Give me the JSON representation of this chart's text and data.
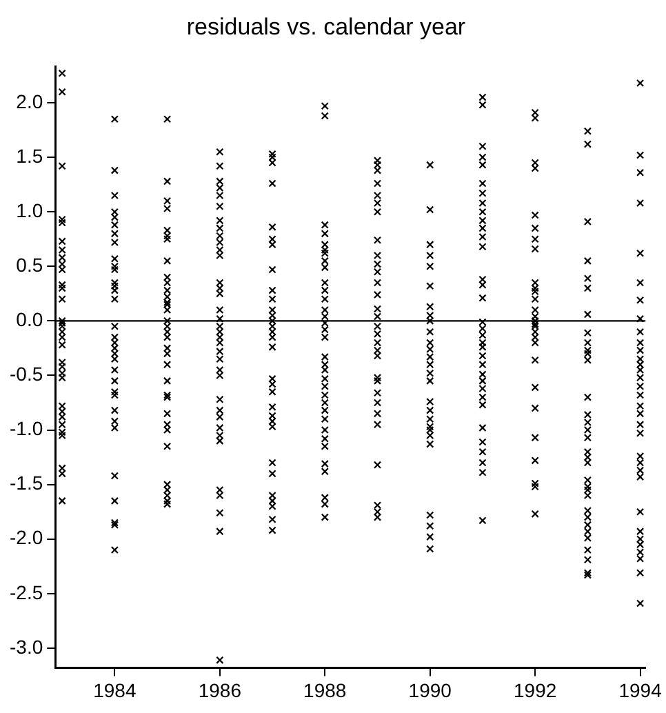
{
  "chart_data": {
    "type": "scatter",
    "title": "residuals vs. calendar year",
    "marker": "cross",
    "grid": false,
    "legend": false,
    "xlim": [
      1982.87,
      1994.1
    ],
    "xticks": [
      1984,
      1986,
      1988,
      1990,
      1992,
      1994
    ],
    "ylim": [
      -3.18,
      2.33
    ],
    "yticks": [
      {
        "value": -3,
        "label": "-3.0"
      },
      {
        "value": -2.5,
        "label": "-2.5"
      },
      {
        "value": -2,
        "label": "-2.0"
      },
      {
        "value": -1.5,
        "label": "-1.5"
      },
      {
        "value": -1,
        "label": "-1.0"
      },
      {
        "value": -0.5,
        "label": "-0.5"
      },
      {
        "value": 0,
        "label": "0.0"
      },
      {
        "value": 0.5,
        "label": "0.5"
      },
      {
        "value": 1,
        "label": "1.0"
      },
      {
        "value": 1.5,
        "label": "1.5"
      },
      {
        "value": 2,
        "label": "2.0"
      }
    ],
    "ref_lines": [
      {
        "axis": "y",
        "value": 0,
        "color": "#000000"
      }
    ],
    "series": [
      {
        "color": "#000000",
        "x": [
          1983,
          1983,
          1983,
          1983,
          1983,
          1983,
          1983,
          1983,
          1983,
          1983,
          1983,
          1983,
          1983,
          1983,
          1983,
          1983,
          1983,
          1983,
          1983,
          1983,
          1983,
          1983,
          1983,
          1983,
          1983,
          1983,
          1983,
          1983,
          1983,
          1983,
          1983,
          1983
        ],
        "values": [
          2.27,
          2.1,
          1.42,
          0.93,
          0.9,
          0.73,
          0.65,
          0.58,
          0.52,
          0.47,
          0.33,
          0.3,
          0.2,
          0.0,
          -0.02,
          -0.05,
          -0.1,
          -0.15,
          -0.22,
          -0.38,
          -0.42,
          -0.48,
          -0.52,
          -0.78,
          -0.83,
          -0.88,
          -0.95,
          -1.02,
          -1.05,
          -1.35,
          -1.4,
          -1.65
        ]
      },
      {
        "color": "#000000",
        "x": [
          1984,
          1984,
          1984,
          1984,
          1984,
          1984,
          1984,
          1984,
          1984,
          1984,
          1984,
          1984,
          1984,
          1984,
          1984,
          1984,
          1984,
          1984,
          1984,
          1984,
          1984,
          1984,
          1984,
          1984,
          1984,
          1984,
          1984,
          1984,
          1984,
          1984,
          1984,
          1984,
          1984
        ],
        "values": [
          1.85,
          1.38,
          1.15,
          1.0,
          0.95,
          0.88,
          0.8,
          0.72,
          0.57,
          0.5,
          0.47,
          0.35,
          0.32,
          0.28,
          0.2,
          -0.05,
          -0.15,
          -0.2,
          -0.25,
          -0.3,
          -0.35,
          -0.45,
          -0.55,
          -0.65,
          -0.68,
          -0.82,
          -0.92,
          -0.98,
          -1.42,
          -1.65,
          -1.85,
          -1.87,
          -2.1
        ]
      },
      {
        "color": "#000000",
        "x": [
          1985,
          1985,
          1985,
          1985,
          1985,
          1985,
          1985,
          1985,
          1985,
          1985,
          1985,
          1985,
          1985,
          1985,
          1985,
          1985,
          1985,
          1985,
          1985,
          1985,
          1985,
          1985,
          1985,
          1985,
          1985,
          1985,
          1985,
          1985,
          1985,
          1985,
          1985,
          1985,
          1985,
          1985
        ],
        "values": [
          1.85,
          1.28,
          1.1,
          1.03,
          0.83,
          0.78,
          0.75,
          0.55,
          0.4,
          0.35,
          0.28,
          0.22,
          0.17,
          0.15,
          0.1,
          0.0,
          -0.05,
          -0.1,
          -0.15,
          -0.25,
          -0.3,
          -0.4,
          -0.55,
          -0.68,
          -0.7,
          -0.85,
          -0.95,
          -1.0,
          -1.15,
          -1.5,
          -1.55,
          -1.6,
          -1.65,
          -1.68
        ]
      },
      {
        "color": "#000000",
        "x": [
          1986,
          1986,
          1986,
          1986,
          1986,
          1986,
          1986,
          1986,
          1986,
          1986,
          1986,
          1986,
          1986,
          1986,
          1986,
          1986,
          1986,
          1986,
          1986,
          1986,
          1986,
          1986,
          1986,
          1986,
          1986,
          1986,
          1986,
          1986,
          1986,
          1986,
          1986,
          1986,
          1986,
          1986,
          1986,
          1986
        ],
        "values": [
          1.55,
          1.42,
          1.28,
          1.22,
          1.15,
          1.05,
          0.92,
          0.85,
          0.78,
          0.72,
          0.65,
          0.6,
          0.35,
          0.3,
          0.25,
          0.1,
          0.02,
          -0.05,
          -0.1,
          -0.15,
          -0.2,
          -0.28,
          -0.35,
          -0.45,
          -0.5,
          -0.72,
          -0.82,
          -0.88,
          -0.98,
          -1.05,
          -1.1,
          -1.55,
          -1.6,
          -1.76,
          -1.93,
          -3.11
        ]
      },
      {
        "color": "#000000",
        "x": [
          1987,
          1987,
          1987,
          1987,
          1987,
          1987,
          1987,
          1987,
          1987,
          1987,
          1987,
          1987,
          1987,
          1987,
          1987,
          1987,
          1987,
          1987,
          1987,
          1987,
          1987,
          1987,
          1987,
          1987,
          1987,
          1987,
          1987,
          1987,
          1987,
          1987,
          1987
        ],
        "values": [
          1.53,
          1.5,
          1.45,
          1.26,
          0.86,
          0.7,
          0.47,
          0.28,
          0.2,
          0.1,
          0.05,
          0.0,
          -0.05,
          -0.1,
          -0.15,
          -0.24,
          -0.53,
          -0.58,
          -0.65,
          -0.79,
          -0.87,
          -0.92,
          -0.97,
          -1.3,
          -1.4,
          -1.6,
          -1.65,
          -1.7,
          -1.82,
          -1.92,
          0.75
        ]
      },
      {
        "color": "#000000",
        "x": [
          1988,
          1988,
          1988,
          1988,
          1988,
          1988,
          1988,
          1988,
          1988,
          1988,
          1988,
          1988,
          1988,
          1988,
          1988,
          1988,
          1988,
          1988,
          1988,
          1988,
          1988,
          1988,
          1988,
          1988,
          1988,
          1988,
          1988,
          1988,
          1988,
          1988,
          1988,
          1988,
          1988,
          1988
        ],
        "values": [
          1.97,
          1.88,
          0.88,
          0.8,
          0.7,
          0.62,
          0.55,
          0.49,
          0.35,
          0.28,
          0.2,
          0.1,
          0.04,
          -0.02,
          -0.08,
          -0.15,
          -0.33,
          -0.4,
          -0.45,
          -0.53,
          -0.6,
          -0.68,
          -0.75,
          -0.82,
          -0.9,
          -1.0,
          -1.08,
          -1.15,
          -1.31,
          -1.38,
          -1.62,
          -1.68,
          -1.8,
          0.65
        ]
      },
      {
        "color": "#000000",
        "x": [
          1989,
          1989,
          1989,
          1989,
          1989,
          1989,
          1989,
          1989,
          1989,
          1989,
          1989,
          1989,
          1989,
          1989,
          1989,
          1989,
          1989,
          1989,
          1989,
          1989,
          1989,
          1989,
          1989,
          1989,
          1989,
          1989,
          1989,
          1989,
          1989,
          1989
        ],
        "values": [
          1.47,
          1.43,
          1.26,
          1.15,
          1.0,
          0.74,
          0.6,
          0.52,
          0.45,
          0.35,
          0.24,
          0.11,
          0.04,
          -0.05,
          -0.12,
          -0.2,
          -0.32,
          -0.52,
          -0.55,
          -0.66,
          -0.75,
          -0.85,
          -0.95,
          -1.32,
          -1.69,
          -1.75,
          -1.8,
          1.38,
          1.08,
          -0.27
        ]
      },
      {
        "color": "#000000",
        "x": [
          1990,
          1990,
          1990,
          1990,
          1990,
          1990,
          1990,
          1990,
          1990,
          1990,
          1990,
          1990,
          1990,
          1990,
          1990,
          1990,
          1990,
          1990,
          1990,
          1990,
          1990,
          1990,
          1990,
          1990,
          1990,
          1990,
          1990
        ],
        "values": [
          1.43,
          1.02,
          0.7,
          0.6,
          0.5,
          0.32,
          0.13,
          0.05,
          -0.1,
          -0.2,
          -0.33,
          -0.4,
          -0.48,
          -0.55,
          -0.74,
          -0.82,
          -0.9,
          -0.97,
          -1.05,
          -1.13,
          -1.78,
          -1.88,
          -1.98,
          -2.09,
          0.0,
          -0.26,
          -1.0
        ]
      },
      {
        "color": "#000000",
        "x": [
          1991,
          1991,
          1991,
          1991,
          1991,
          1991,
          1991,
          1991,
          1991,
          1991,
          1991,
          1991,
          1991,
          1991,
          1991,
          1991,
          1991,
          1991,
          1991,
          1991,
          1991,
          1991,
          1991,
          1991,
          1991,
          1991,
          1991,
          1991,
          1991,
          1991,
          1991,
          1991,
          1991,
          1991
        ],
        "values": [
          2.05,
          1.98,
          1.6,
          1.5,
          1.43,
          1.26,
          1.17,
          1.08,
          1.0,
          0.92,
          0.85,
          0.77,
          0.68,
          0.38,
          0.33,
          0.21,
          -0.01,
          -0.07,
          -0.13,
          -0.2,
          -0.24,
          -0.32,
          -0.4,
          -0.49,
          -0.55,
          -0.62,
          -0.7,
          -0.77,
          -0.98,
          -1.11,
          -1.2,
          -1.3,
          -1.39,
          -1.83
        ]
      },
      {
        "color": "#000000",
        "x": [
          1992,
          1992,
          1992,
          1992,
          1992,
          1992,
          1992,
          1992,
          1992,
          1992,
          1992,
          1992,
          1992,
          1992,
          1992,
          1992,
          1992,
          1992,
          1992,
          1992,
          1992,
          1992,
          1992,
          1992,
          1992,
          1992,
          1992,
          1992
        ],
        "values": [
          1.91,
          1.86,
          1.45,
          1.4,
          0.97,
          0.85,
          0.75,
          0.66,
          0.35,
          0.27,
          0.2,
          0.1,
          0.04,
          -0.03,
          -0.1,
          -0.2,
          -0.36,
          -0.61,
          -0.8,
          -1.07,
          -1.28,
          -1.49,
          -1.52,
          -1.77,
          0.3,
          -0.15,
          0.0,
          -0.05
        ]
      },
      {
        "color": "#000000",
        "x": [
          1993,
          1993,
          1993,
          1993,
          1993,
          1993,
          1993,
          1993,
          1993,
          1993,
          1993,
          1993,
          1993,
          1993,
          1993,
          1993,
          1993,
          1993,
          1993,
          1993,
          1993,
          1993,
          1993,
          1993,
          1993,
          1993,
          1993,
          1993,
          1993,
          1993,
          1993,
          1993,
          1993
        ],
        "values": [
          1.74,
          1.62,
          0.91,
          0.55,
          0.39,
          0.3,
          0.06,
          -0.11,
          -0.2,
          -0.27,
          -0.36,
          -0.7,
          -0.86,
          -0.93,
          -1.0,
          -1.07,
          -1.2,
          -1.3,
          -1.46,
          -1.52,
          -1.6,
          -1.74,
          -1.8,
          -1.87,
          -1.93,
          -1.99,
          -2.1,
          -2.19,
          -2.31,
          -2.33,
          -0.3,
          -1.25,
          -1.55
        ]
      },
      {
        "color": "#000000",
        "x": [
          1994,
          1994,
          1994,
          1994,
          1994,
          1994,
          1994,
          1994,
          1994,
          1994,
          1994,
          1994,
          1994,
          1994,
          1994,
          1994,
          1994,
          1994,
          1994,
          1994,
          1994,
          1994,
          1994,
          1994,
          1994,
          1994,
          1994,
          1994,
          1994,
          1994,
          1994,
          1994,
          1994
        ],
        "values": [
          2.18,
          1.52,
          1.36,
          1.08,
          0.62,
          0.35,
          0.19,
          0.02,
          -0.1,
          -0.2,
          -0.27,
          -0.35,
          -0.45,
          -0.52,
          -0.6,
          -0.68,
          -0.78,
          -0.85,
          -0.95,
          -1.03,
          -1.24,
          -1.3,
          -1.37,
          -1.43,
          -1.75,
          -1.93,
          -2.0,
          -2.05,
          -2.12,
          -2.18,
          -2.31,
          -2.59,
          -0.4
        ]
      }
    ]
  }
}
